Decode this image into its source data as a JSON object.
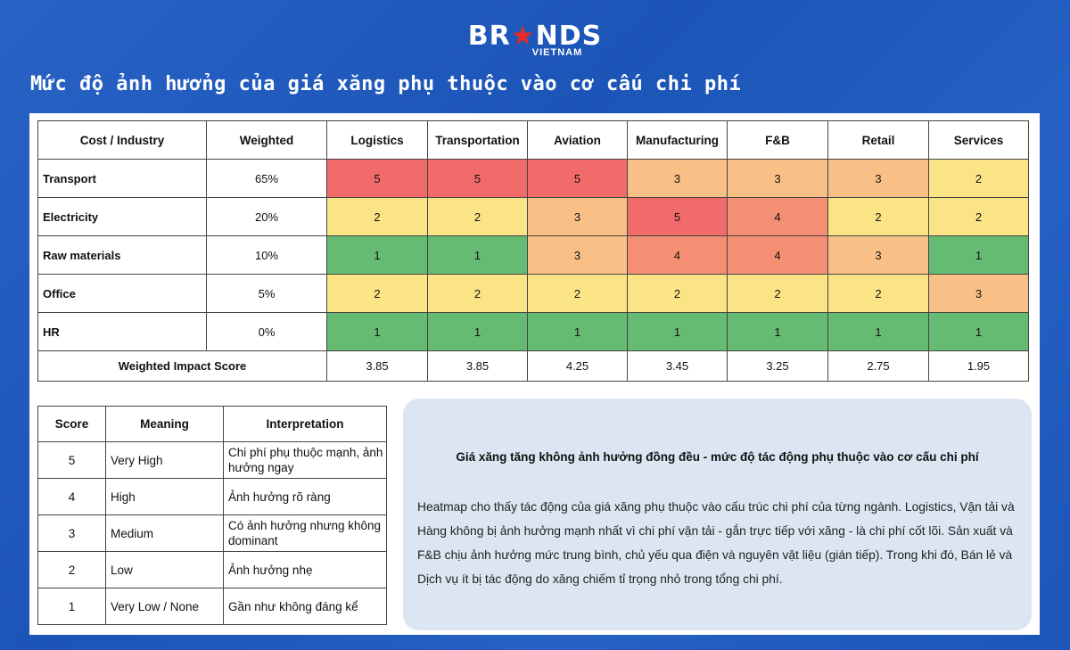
{
  "brand": {
    "logo_text_1": "BR",
    "logo_star": "★",
    "logo_text_2": "NDS",
    "logo_sub": "VIETNAM"
  },
  "title": "Mức độ ảnh hưởng của giá xăng phụ thuộc vào cơ cấu chi phí",
  "colors": {
    "5": "#f26b6b",
    "4": "#f48f74",
    "3": "#f8c086",
    "2": "#fbe485",
    "1": "#66bb72",
    "background": "#1d5bc4"
  },
  "chart_data": {
    "type": "heatmap",
    "header_label": "Cost / Industry",
    "weight_header": "Weighted",
    "industries": [
      "Logistics",
      "Transportation",
      "Aviation",
      "Manufacturing",
      "F&B",
      "Retail",
      "Services"
    ],
    "rows": [
      {
        "name": "Transport",
        "weight": "65%",
        "values": [
          5,
          5,
          5,
          3,
          3,
          3,
          2
        ]
      },
      {
        "name": "Electricity",
        "weight": "20%",
        "values": [
          2,
          2,
          3,
          5,
          4,
          2,
          2
        ]
      },
      {
        "name": "Raw materials",
        "weight": "10%",
        "values": [
          1,
          1,
          3,
          4,
          4,
          3,
          1
        ]
      },
      {
        "name": "Office",
        "weight": "5%",
        "values": [
          2,
          2,
          2,
          2,
          2,
          2,
          3
        ]
      },
      {
        "name": "HR",
        "weight": "0%",
        "values": [
          1,
          1,
          1,
          1,
          1,
          1,
          1
        ]
      }
    ],
    "score_label": "Weighted Impact Score",
    "scores": [
      "3.85",
      "3.85",
      "4.25",
      "3.45",
      "3.25",
      "2.75",
      "1.95"
    ]
  },
  "legend": {
    "headers": [
      "Score",
      "Meaning",
      "Interpretation"
    ],
    "rows": [
      {
        "score": "5",
        "meaning": "Very High",
        "interp": "Chi phí phụ thuộc mạnh, ảnh hưởng ngay"
      },
      {
        "score": "4",
        "meaning": "High",
        "interp": "Ảnh hưởng rõ ràng"
      },
      {
        "score": "3",
        "meaning": "Medium",
        "interp": "Có ảnh hưởng nhưng không dominant"
      },
      {
        "score": "2",
        "meaning": "Low",
        "interp": "Ảnh hưởng nhẹ"
      },
      {
        "score": "1",
        "meaning": "Very Low / None",
        "interp": "Gần như không đáng kể"
      }
    ]
  },
  "note": {
    "title": "Giá xăng tăng không ảnh hưởng đồng đều - mức độ tác động phụ thuộc vào cơ cấu chi phí",
    "body": "Heatmap cho thấy tác động của giá xăng phụ thuộc vào cấu trúc chi phí của từng ngành. Logistics, Vận tải và Hàng không bị ảnh hưởng mạnh nhất vì chi phí vận tải - gắn trực tiếp với xăng - là chi phí cốt lõi. Sản xuất và F&B chịu ảnh hưởng mức trung bình, chủ yếu qua điện và nguyên vật liệu (gián tiếp). Trong khi đó, Bán lẻ và Dịch vụ ít bị tác động do xăng chiếm tỉ trọng nhỏ trong tổng chi phí."
  }
}
